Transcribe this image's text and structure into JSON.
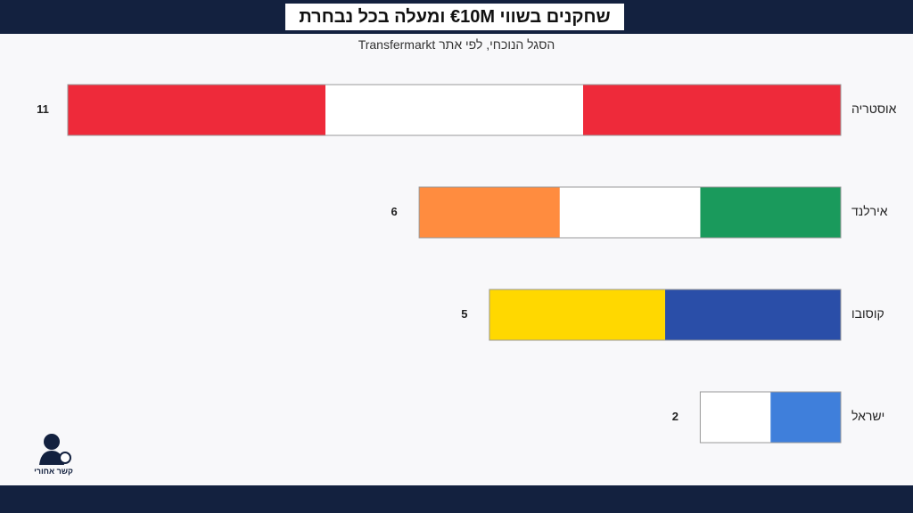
{
  "chart_data": {
    "type": "bar",
    "orientation": "horizontal-left",
    "title": "שחקנים בשווי €10M ומעלה בכל נבחרת",
    "subtitle": "הסגל הנוכחי, לפי אתר Transfermarkt",
    "categories": [
      "אוסטריה",
      "אירלנד",
      "קוסובו",
      "ישראל"
    ],
    "values": [
      11,
      6,
      5,
      2
    ],
    "colors": [
      [
        "#ee2a3a",
        "#ffffff",
        "#ee2a3a"
      ],
      [
        "#1a9a5c",
        "#ffffff",
        "#ff8c3f"
      ],
      [
        "#2a4ea8",
        "#ffd800"
      ],
      [
        "#3f7fdb",
        "#ffffff"
      ]
    ],
    "xlim": [
      0,
      11
    ]
  },
  "logo": {
    "text": "קשר אחורי"
  }
}
